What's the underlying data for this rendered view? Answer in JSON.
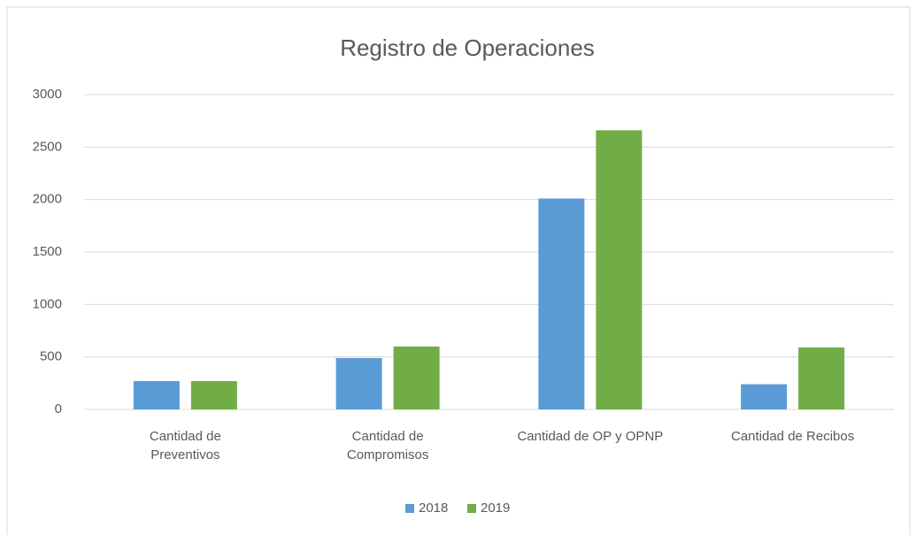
{
  "chart_data": {
    "type": "bar",
    "title": "Registro de Operaciones",
    "categories": [
      "Cantidad de\nPreventivos",
      "Cantidad de\nCompromisos",
      "Cantidad de OP y OPNP",
      "Cantidad de Recibos"
    ],
    "series": [
      {
        "name": "2018",
        "color": "#5b9bd5",
        "values": [
          270,
          490,
          2010,
          240
        ]
      },
      {
        "name": "2019",
        "color": "#70ad47",
        "values": [
          270,
          600,
          2660,
          590
        ]
      }
    ],
    "ylim": [
      0,
      3000
    ],
    "yticks": [
      0,
      500,
      1000,
      1500,
      2000,
      2500,
      3000
    ],
    "grid": true,
    "legend": "bottom"
  }
}
